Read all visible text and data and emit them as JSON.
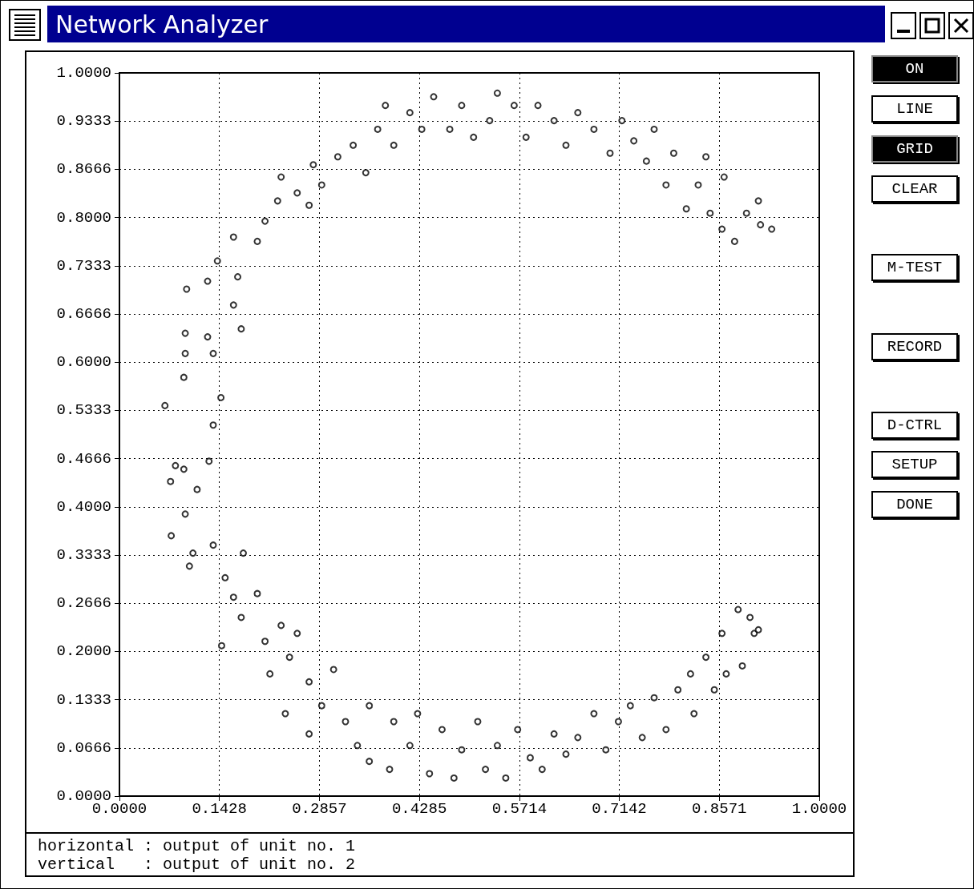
{
  "chart_data": {
    "type": "scatter",
    "title": "Network Analyzer",
    "annotations": [
      "horizontal : output of unit no. 1",
      "vertical   : output of unit no. 2",
      "ON",
      "LINE",
      "GRID",
      "CLEAR",
      "M-TEST",
      "RECORD",
      "D-CTRL",
      "SETUP",
      "DONE"
    ],
    "x": [
      0.065,
      0.074,
      0.073,
      0.08,
      0.092,
      0.094,
      0.1,
      0.092,
      0.094,
      0.094,
      0.096,
      0.111,
      0.128,
      0.134,
      0.145,
      0.126,
      0.134,
      0.126,
      0.14,
      0.163,
      0.169,
      0.174,
      0.163,
      0.197,
      0.208,
      0.226,
      0.231,
      0.254,
      0.271,
      0.277,
      0.289,
      0.312,
      0.334,
      0.352,
      0.369,
      0.38,
      0.392,
      0.415,
      0.432,
      0.449,
      0.472,
      0.489,
      0.506,
      0.529,
      0.54,
      0.564,
      0.581,
      0.598,
      0.621,
      0.638,
      0.655,
      0.678,
      0.701,
      0.718,
      0.735,
      0.753,
      0.764,
      0.781,
      0.792,
      0.81,
      0.827,
      0.838,
      0.844,
      0.861,
      0.864,
      0.879,
      0.896,
      0.913,
      0.916,
      0.932,
      0.105,
      0.134,
      0.151,
      0.163,
      0.146,
      0.174,
      0.177,
      0.197,
      0.208,
      0.215,
      0.231,
      0.243,
      0.254,
      0.237,
      0.271,
      0.289,
      0.271,
      0.306,
      0.323,
      0.34,
      0.357,
      0.357,
      0.386,
      0.392,
      0.415,
      0.426,
      0.443,
      0.461,
      0.478,
      0.489,
      0.512,
      0.523,
      0.54,
      0.552,
      0.569,
      0.587,
      0.604,
      0.621,
      0.638,
      0.655,
      0.678,
      0.695,
      0.713,
      0.73,
      0.747,
      0.764,
      0.781,
      0.798,
      0.816,
      0.821,
      0.838,
      0.85,
      0.861,
      0.867,
      0.884,
      0.89,
      0.901,
      0.907,
      0.913
    ],
    "values": [
      0.54,
      0.36,
      0.435,
      0.457,
      0.452,
      0.39,
      0.318,
      0.579,
      0.612,
      0.64,
      0.701,
      0.424,
      0.463,
      0.513,
      0.551,
      0.635,
      0.612,
      0.712,
      0.74,
      0.679,
      0.718,
      0.646,
      0.773,
      0.767,
      0.795,
      0.823,
      0.856,
      0.834,
      0.817,
      0.873,
      0.845,
      0.884,
      0.9,
      0.862,
      0.922,
      0.955,
      0.9,
      0.945,
      0.922,
      0.967,
      0.922,
      0.955,
      0.911,
      0.934,
      0.972,
      0.955,
      0.911,
      0.955,
      0.934,
      0.9,
      0.945,
      0.922,
      0.889,
      0.934,
      0.906,
      0.878,
      0.922,
      0.845,
      0.889,
      0.812,
      0.845,
      0.884,
      0.806,
      0.784,
      0.856,
      0.767,
      0.806,
      0.823,
      0.79,
      0.784,
      0.336,
      0.347,
      0.302,
      0.275,
      0.208,
      0.247,
      0.336,
      0.28,
      0.214,
      0.169,
      0.236,
      0.192,
      0.225,
      0.114,
      0.158,
      0.125,
      0.086,
      0.175,
      0.103,
      0.07,
      0.048,
      0.125,
      0.037,
      0.103,
      0.07,
      0.114,
      0.031,
      0.092,
      0.025,
      0.064,
      0.103,
      0.037,
      0.07,
      0.025,
      0.092,
      0.053,
      0.037,
      0.086,
      0.058,
      0.081,
      0.114,
      0.064,
      0.103,
      0.125,
      0.081,
      0.136,
      0.092,
      0.147,
      0.169,
      0.114,
      0.192,
      0.147,
      0.225,
      0.169,
      0.258,
      0.18,
      0.247,
      0.225,
      0.23
    ],
    "color": "#000000",
    "marker": "circle",
    "grid": true,
    "xlim": [
      0,
      1
    ],
    "xticks": [
      {
        "value": 0,
        "label": "0.0000"
      },
      {
        "value": 0.1428,
        "label": "0.1428"
      },
      {
        "value": 0.2857,
        "label": "0.2857"
      },
      {
        "value": 0.4285,
        "label": "0.4285"
      },
      {
        "value": 0.5714,
        "label": "0.5714"
      },
      {
        "value": 0.7142,
        "label": "0.7142"
      },
      {
        "value": 0.8571,
        "label": "0.8571"
      },
      {
        "value": 1,
        "label": "1.0000"
      }
    ],
    "ylim": [
      0,
      1
    ],
    "yticks": [
      {
        "value": 0,
        "label": "0.0000"
      },
      {
        "value": 0.0666,
        "label": "0.0666"
      },
      {
        "value": 0.1333,
        "label": "0.1333"
      },
      {
        "value": 0.2,
        "label": "0.2000"
      },
      {
        "value": 0.2666,
        "label": "0.2666"
      },
      {
        "value": 0.3333,
        "label": "0.3333"
      },
      {
        "value": 0.4,
        "label": "0.4000"
      },
      {
        "value": 0.4666,
        "label": "0.4666"
      },
      {
        "value": 0.5333,
        "label": "0.5333"
      },
      {
        "value": 0.6,
        "label": "0.6000"
      },
      {
        "value": 0.6666,
        "label": "0.6666"
      },
      {
        "value": 0.7333,
        "label": "0.7333"
      },
      {
        "value": 0.8,
        "label": "0.8000"
      },
      {
        "value": 0.8666,
        "label": "0.8666"
      },
      {
        "value": 0.9333,
        "label": "0.9333"
      },
      {
        "value": 1,
        "label": "1.0000"
      }
    ]
  }
}
